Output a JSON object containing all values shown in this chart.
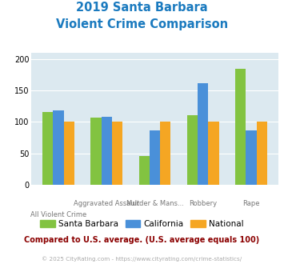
{
  "title_line1": "2019 Santa Barbara",
  "title_line2": "Violent Crime Comparison",
  "title_color": "#1a7abf",
  "santa_barbara": [
    116,
    107,
    46,
    111,
    185
  ],
  "california": [
    118,
    108,
    86,
    162,
    87
  ],
  "national": [
    100,
    100,
    100,
    100,
    100
  ],
  "sb_color": "#82c341",
  "ca_color": "#4a90d9",
  "nat_color": "#f5a623",
  "ylim": [
    0,
    210
  ],
  "yticks": [
    0,
    50,
    100,
    150,
    200
  ],
  "bg_color": "#dce9f0",
  "legend_labels": [
    "Santa Barbara",
    "California",
    "National"
  ],
  "note_text": "Compared to U.S. average. (U.S. average equals 100)",
  "note_color": "#8b0000",
  "footer_text": "© 2025 CityRating.com - https://www.cityrating.com/crime-statistics/",
  "footer_color": "#aaaaaa",
  "x_top_labels": [
    "",
    "Aggravated Assault",
    "Murder & Mans...",
    "Robbery",
    "Rape"
  ],
  "x_bot_labels": [
    "All Violent Crime",
    "",
    "",
    "",
    ""
  ]
}
